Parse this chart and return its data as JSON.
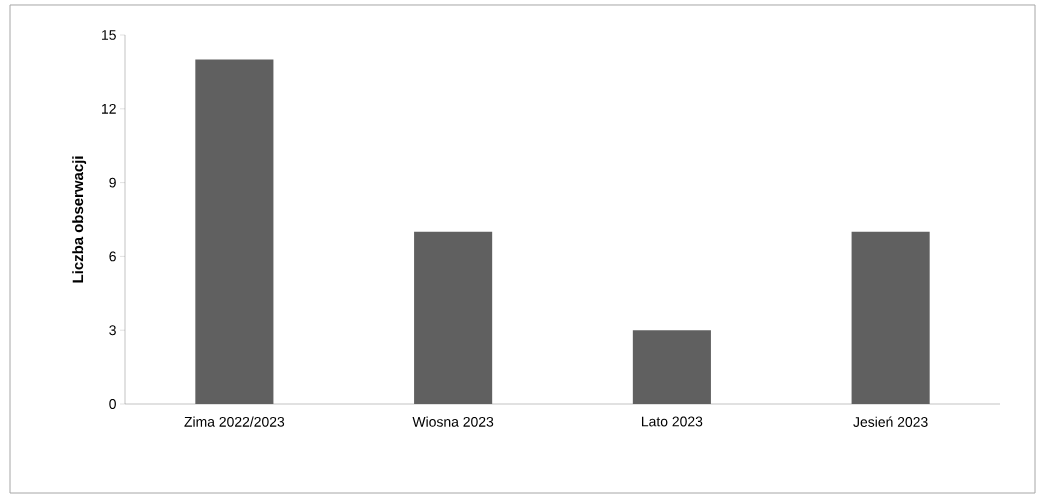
{
  "chart_data": {
    "type": "bar",
    "ylabel": "Liczba obserwacji",
    "categories": [
      "Zima 2022/2023",
      "Wiosna 2023",
      "Lato 2023",
      "Jesień 2023"
    ],
    "values": [
      14,
      7,
      3,
      7
    ],
    "color": "#606060",
    "ylim": [
      0,
      15
    ],
    "yticks": [
      0,
      3,
      6,
      9,
      12,
      15
    ],
    "grid": false
  }
}
